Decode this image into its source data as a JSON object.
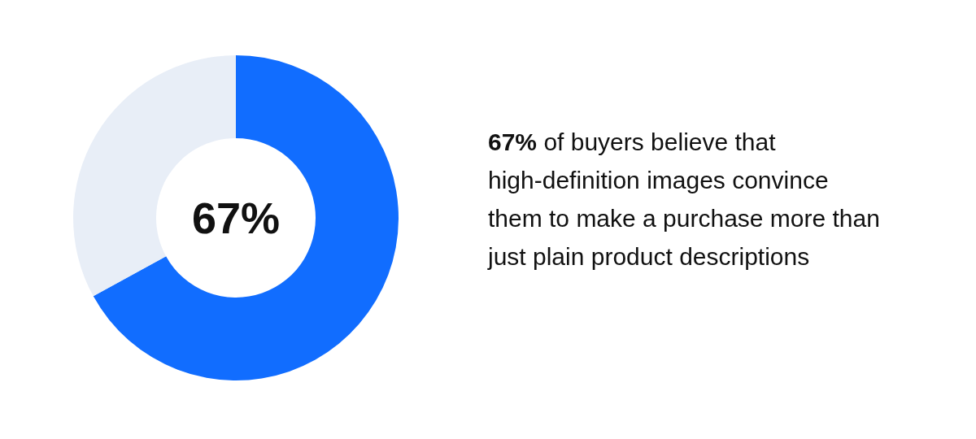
{
  "chart_data": {
    "type": "donut",
    "categories": [
      null,
      null
    ],
    "values": [
      67,
      33
    ],
    "colors": [
      "#116dff",
      "#e8eef7"
    ],
    "value_labels": [
      "67%",
      null
    ],
    "annotations": [
      "67% of buyers believe that high-definition images convince them to make a purchase more than just plain product descriptions"
    ]
  }
}
